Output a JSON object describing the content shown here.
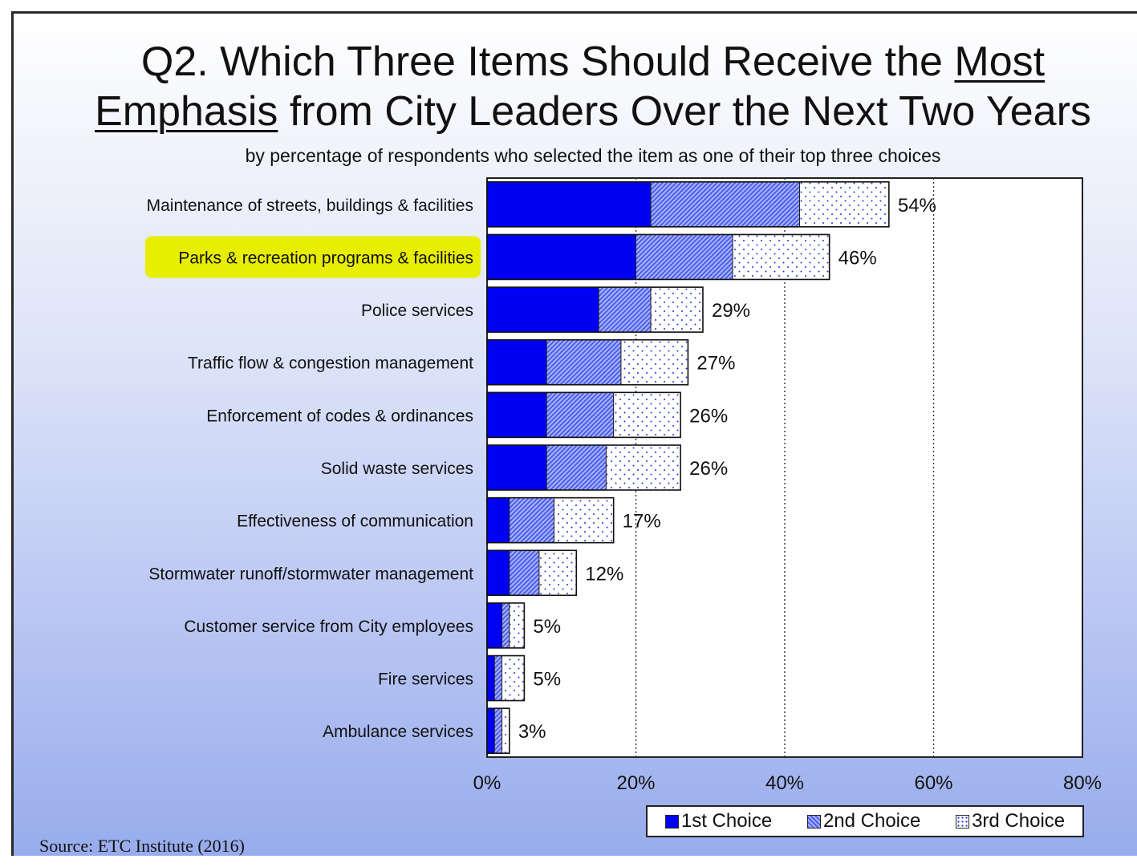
{
  "title": {
    "line1_plain": "Q2. Which Three Items Should Receive the ",
    "line1_underlined": "Most",
    "line2_underlined": "Emphasis",
    "line2_plain": " from City Leaders Over the Next Two Years"
  },
  "subtitle": "by percentage of respondents who selected the item as one of their top three choices",
  "source": "Source:  ETC Institute (2016)",
  "colors": {
    "first_choice": "#0000f2",
    "second_choice_hatch": "#4b5cf0",
    "third_choice_fill": "#ffffff",
    "highlight": "#e8ee00"
  },
  "chart_data": {
    "type": "bar",
    "orientation": "horizontal",
    "stacked": true,
    "categories": [
      "Maintenance of streets, buildings & facilities",
      "Parks & recreation programs & facilities",
      "Police services",
      "Traffic flow & congestion management",
      "Enforcement of codes & ordinances",
      "Solid waste services",
      "Effectiveness of communication",
      "Stormwater runoff/stormwater management",
      "Customer service from City employees",
      "Fire services",
      "Ambulance services"
    ],
    "highlighted_category": "Parks & recreation programs & facilities",
    "series": [
      {
        "name": "1st Choice",
        "values": [
          22,
          20,
          15,
          8,
          8,
          8,
          3,
          3,
          2,
          1,
          1
        ]
      },
      {
        "name": "2nd Choice",
        "values": [
          20,
          13,
          7,
          10,
          9,
          8,
          6,
          4,
          1,
          1,
          1
        ]
      },
      {
        "name": "3rd Choice",
        "values": [
          12,
          13,
          7,
          9,
          9,
          10,
          8,
          5,
          2,
          3,
          1
        ]
      }
    ],
    "totals": [
      54,
      46,
      29,
      27,
      26,
      26,
      17,
      12,
      5,
      5,
      3
    ],
    "total_labels": [
      "54%",
      "46%",
      "29%",
      "27%",
      "26%",
      "26%",
      "17%",
      "12%",
      "5%",
      "5%",
      "3%"
    ],
    "xlim": [
      0,
      80
    ],
    "x_ticks": [
      0,
      20,
      40,
      60,
      80
    ],
    "x_tick_labels": [
      "0%",
      "20%",
      "40%",
      "60%",
      "80%"
    ],
    "grid": "vertical dotted",
    "legend_position": "bottom-right"
  }
}
